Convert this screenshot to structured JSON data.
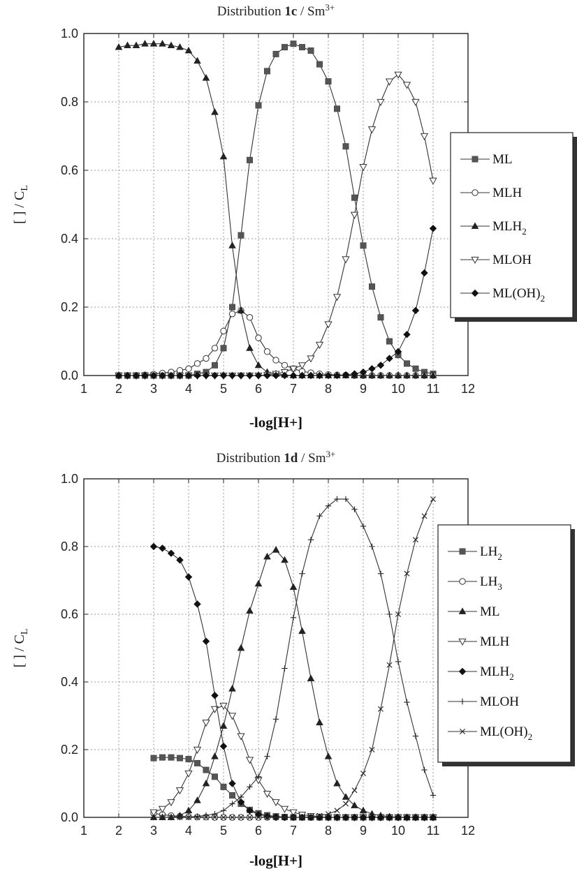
{
  "chart_data": [
    {
      "type": "line",
      "title_prefix": "Distribution ",
      "title_bold": "1c",
      "title_suffix": " / Sm",
      "title_sup": "3+",
      "xlabel": "-log[H+]",
      "ylabel": "[ ] / C_L",
      "xlim": [
        1,
        12
      ],
      "ylim": [
        0,
        1
      ],
      "xticks": [
        "1",
        "2",
        "3",
        "4",
        "5",
        "6",
        "7",
        "8",
        "9",
        "10",
        "11",
        "12"
      ],
      "yticks": [
        "0.0",
        "0.2",
        "0.4",
        "0.6",
        "0.8",
        "1.0"
      ],
      "grid": true,
      "legend_position": "right",
      "x": [
        2,
        2.25,
        2.5,
        2.75,
        3,
        3.25,
        3.5,
        3.75,
        4,
        4.25,
        4.5,
        4.75,
        5,
        5.25,
        5.5,
        5.75,
        6,
        6.25,
        6.5,
        6.75,
        7,
        7.25,
        7.5,
        7.75,
        8,
        8.25,
        8.5,
        8.75,
        9,
        9.25,
        9.5,
        9.75,
        10,
        10.25,
        10.5,
        10.75,
        11
      ],
      "series": [
        {
          "name": "ML",
          "label_main": "ML",
          "label_sub": "",
          "label_tail": "",
          "marker": "square",
          "values": [
            0.0,
            0.0,
            0.0,
            0.0,
            0.0,
            0.0,
            0.0,
            0.0,
            0.0,
            0.005,
            0.01,
            0.03,
            0.08,
            0.2,
            0.41,
            0.63,
            0.79,
            0.89,
            0.94,
            0.96,
            0.97,
            0.96,
            0.95,
            0.91,
            0.86,
            0.78,
            0.67,
            0.52,
            0.38,
            0.26,
            0.17,
            0.1,
            0.06,
            0.035,
            0.02,
            0.01,
            0.005
          ]
        },
        {
          "name": "MLH",
          "label_main": "MLH",
          "label_sub": "",
          "label_tail": "",
          "marker": "circle-open",
          "values": [
            0.0,
            0.0,
            0.0,
            0.002,
            0.004,
            0.007,
            0.01,
            0.015,
            0.02,
            0.035,
            0.05,
            0.08,
            0.13,
            0.18,
            0.19,
            0.17,
            0.11,
            0.07,
            0.045,
            0.03,
            0.02,
            0.012,
            0.008,
            0.005,
            0.003,
            0.002,
            0.001,
            0.0,
            0.0,
            0.0,
            0.0,
            0.0,
            0.0,
            0.0,
            0.0,
            0.0,
            0.0
          ]
        },
        {
          "name": "MLH2",
          "label_main": "MLH",
          "label_sub": "2",
          "label_tail": "",
          "marker": "triangle-up",
          "values": [
            0.96,
            0.965,
            0.965,
            0.97,
            0.97,
            0.97,
            0.965,
            0.96,
            0.95,
            0.92,
            0.87,
            0.77,
            0.64,
            0.38,
            0.19,
            0.08,
            0.03,
            0.01,
            0.005,
            0.002,
            0.0,
            0.0,
            0.0,
            0.0,
            0.0,
            0.0,
            0.0,
            0.0,
            0.0,
            0.0,
            0.0,
            0.0,
            0.0,
            0.0,
            0.0,
            0.0,
            0.0
          ]
        },
        {
          "name": "MLOH",
          "label_main": "MLOH",
          "label_sub": "",
          "label_tail": "",
          "marker": "triangle-down-open",
          "values": [
            0.0,
            0.0,
            0.0,
            0.0,
            0.0,
            0.0,
            0.0,
            0.0,
            0.0,
            0.0,
            0.0,
            0.0,
            0.0,
            0.0,
            0.0,
            0.0,
            0.0,
            0.002,
            0.005,
            0.01,
            0.02,
            0.03,
            0.05,
            0.09,
            0.15,
            0.23,
            0.34,
            0.47,
            0.61,
            0.72,
            0.8,
            0.86,
            0.88,
            0.85,
            0.8,
            0.7,
            0.57
          ]
        },
        {
          "name": "ML(OH)2",
          "label_main": "ML(OH)",
          "label_sub": "2",
          "label_tail": "",
          "marker": "diamond",
          "values": [
            0.0,
            0.0,
            0.0,
            0.0,
            0.0,
            0.0,
            0.0,
            0.0,
            0.0,
            0.0,
            0.0,
            0.0,
            0.0,
            0.0,
            0.0,
            0.0,
            0.0,
            0.0,
            0.0,
            0.0,
            0.0,
            0.0,
            0.0,
            0.0,
            0.0,
            0.0,
            0.002,
            0.005,
            0.01,
            0.02,
            0.03,
            0.05,
            0.07,
            0.12,
            0.19,
            0.3,
            0.43
          ]
        }
      ]
    },
    {
      "type": "line",
      "title_prefix": "Distribution ",
      "title_bold": "1d",
      "title_suffix": " / Sm",
      "title_sup": "3+",
      "xlabel": "-log[H+]",
      "ylabel": "[ ] / C_L",
      "xlim": [
        1,
        12
      ],
      "ylim": [
        0,
        1
      ],
      "xticks": [
        "1",
        "2",
        "3",
        "4",
        "5",
        "6",
        "7",
        "8",
        "9",
        "10",
        "11",
        "12"
      ],
      "yticks": [
        "0.0",
        "0.2",
        "0.4",
        "0.6",
        "0.8",
        "1.0"
      ],
      "grid": true,
      "legend_position": "right",
      "x": [
        3,
        3.25,
        3.5,
        3.75,
        4,
        4.25,
        4.5,
        4.75,
        5,
        5.25,
        5.5,
        5.75,
        6,
        6.25,
        6.5,
        6.75,
        7,
        7.25,
        7.5,
        7.75,
        8,
        8.25,
        8.5,
        8.75,
        9,
        9.25,
        9.5,
        9.75,
        10,
        10.25,
        10.5,
        10.75,
        11
      ],
      "series": [
        {
          "name": "LH2",
          "label_main": "LH",
          "label_sub": "2",
          "label_tail": "",
          "marker": "square",
          "values": [
            0.175,
            0.177,
            0.177,
            0.175,
            0.172,
            0.16,
            0.14,
            0.12,
            0.09,
            0.065,
            0.04,
            0.022,
            0.012,
            0.006,
            0.003,
            0.001,
            0.0,
            0.0,
            0.0,
            0.0,
            0.0,
            0.0,
            0.0,
            0.0,
            0.0,
            0.0,
            0.0,
            0.0,
            0.0,
            0.0,
            0.0,
            0.0,
            0.0
          ]
        },
        {
          "name": "LH3",
          "label_main": "LH",
          "label_sub": "3",
          "label_tail": "",
          "marker": "circle-open",
          "values": [
            0.012,
            0.008,
            0.005,
            0.003,
            0.002,
            0.001,
            0.001,
            0.0,
            0.0,
            0.0,
            0.0,
            0.0,
            0.0,
            0.0,
            0.0,
            0.0,
            0.0,
            0.0,
            0.0,
            0.0,
            0.0,
            0.0,
            0.0,
            0.0,
            0.0,
            0.0,
            0.0,
            0.0,
            0.0,
            0.0,
            0.0,
            0.0,
            0.0
          ]
        },
        {
          "name": "ML",
          "label_main": "ML",
          "label_sub": "",
          "label_tail": "",
          "marker": "triangle-up",
          "values": [
            0.0,
            0.0,
            0.0,
            0.005,
            0.02,
            0.05,
            0.1,
            0.18,
            0.27,
            0.38,
            0.5,
            0.61,
            0.69,
            0.77,
            0.79,
            0.76,
            0.68,
            0.55,
            0.41,
            0.28,
            0.18,
            0.1,
            0.06,
            0.035,
            0.02,
            0.01,
            0.005,
            0.002,
            0.001,
            0.0,
            0.0,
            0.0,
            0.0
          ]
        },
        {
          "name": "MLH",
          "label_main": "MLH",
          "label_sub": "",
          "label_tail": "",
          "marker": "triangle-down-open",
          "values": [
            0.015,
            0.025,
            0.045,
            0.08,
            0.13,
            0.2,
            0.28,
            0.32,
            0.33,
            0.3,
            0.24,
            0.17,
            0.11,
            0.07,
            0.045,
            0.025,
            0.015,
            0.008,
            0.004,
            0.002,
            0.0,
            0.0,
            0.0,
            0.0,
            0.0,
            0.0,
            0.0,
            0.0,
            0.0,
            0.0,
            0.0,
            0.0,
            0.0
          ]
        },
        {
          "name": "MLH2",
          "label_main": "MLH",
          "label_sub": "2",
          "label_tail": "",
          "marker": "diamond",
          "values": [
            0.8,
            0.795,
            0.78,
            0.76,
            0.71,
            0.63,
            0.52,
            0.36,
            0.21,
            0.1,
            0.045,
            0.02,
            0.008,
            0.003,
            0.001,
            0.0,
            0.0,
            0.0,
            0.0,
            0.0,
            0.0,
            0.0,
            0.0,
            0.0,
            0.0,
            0.0,
            0.0,
            0.0,
            0.0,
            0.0,
            0.0,
            0.0,
            0.0
          ]
        },
        {
          "name": "MLOH",
          "label_main": "MLOH",
          "label_sub": "",
          "label_tail": "",
          "marker": "plus",
          "values": [
            0.0,
            0.0,
            0.0,
            0.0,
            0.001,
            0.003,
            0.006,
            0.01,
            0.02,
            0.04,
            0.06,
            0.09,
            0.12,
            0.18,
            0.29,
            0.44,
            0.59,
            0.72,
            0.82,
            0.89,
            0.92,
            0.94,
            0.94,
            0.91,
            0.86,
            0.8,
            0.72,
            0.6,
            0.46,
            0.34,
            0.24,
            0.14,
            0.065
          ]
        },
        {
          "name": "ML(OH)2",
          "label_main": "ML(OH)",
          "label_sub": "2",
          "label_tail": "",
          "marker": "cross",
          "values": [
            0.0,
            0.0,
            0.0,
            0.0,
            0.0,
            0.0,
            0.0,
            0.0,
            0.0,
            0.0,
            0.0,
            0.0,
            0.0,
            0.0,
            0.0,
            0.0,
            0.0,
            0.0,
            0.002,
            0.005,
            0.01,
            0.02,
            0.04,
            0.08,
            0.13,
            0.2,
            0.32,
            0.45,
            0.6,
            0.72,
            0.82,
            0.89,
            0.94
          ]
        }
      ]
    }
  ]
}
